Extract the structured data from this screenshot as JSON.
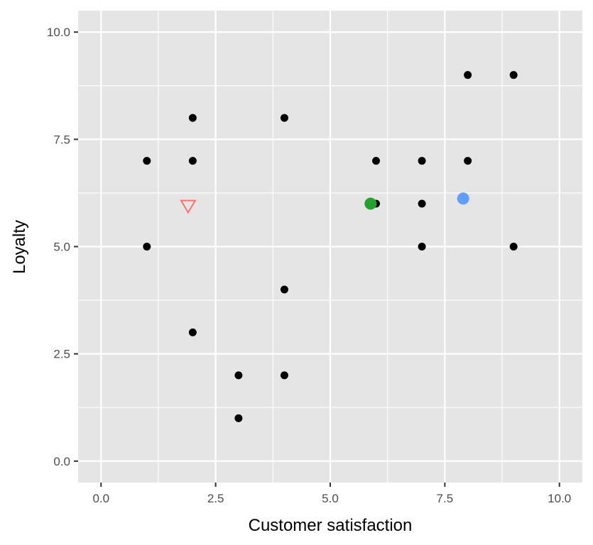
{
  "chart_data": {
    "type": "scatter",
    "title": "",
    "xlabel": "Customer satisfaction",
    "ylabel": "Loyalty",
    "xlim": [
      -0.5,
      10.5
    ],
    "ylim": [
      -0.5,
      10.5
    ],
    "x_ticks": [
      0.0,
      2.5,
      5.0,
      7.5,
      10.0
    ],
    "x_tick_labels": [
      "0.0",
      "2.5",
      "5.0",
      "7.5",
      "10.0"
    ],
    "y_ticks": [
      0.0,
      2.5,
      5.0,
      7.5,
      10.0
    ],
    "y_tick_labels": [
      "0.0",
      "2.5",
      "5.0",
      "7.5",
      "10.0"
    ],
    "grid": true,
    "legend": "none",
    "points": [
      {
        "x": 1,
        "y": 7
      },
      {
        "x": 1,
        "y": 5
      },
      {
        "x": 2,
        "y": 8
      },
      {
        "x": 2,
        "y": 7
      },
      {
        "x": 2,
        "y": 3
      },
      {
        "x": 3,
        "y": 2
      },
      {
        "x": 3,
        "y": 1
      },
      {
        "x": 4,
        "y": 8
      },
      {
        "x": 4,
        "y": 4
      },
      {
        "x": 4,
        "y": 2
      },
      {
        "x": 6,
        "y": 7
      },
      {
        "x": 6,
        "y": 6
      },
      {
        "x": 7,
        "y": 7
      },
      {
        "x": 7,
        "y": 6
      },
      {
        "x": 7,
        "y": 5
      },
      {
        "x": 8,
        "y": 9
      },
      {
        "x": 8,
        "y": 7
      },
      {
        "x": 9,
        "y": 9
      },
      {
        "x": 9,
        "y": 5
      }
    ],
    "highlighted_points": [
      {
        "x": 1.9,
        "y": 5.95,
        "shape": "triangle-down-open",
        "color": "#F8766D"
      },
      {
        "x": 5.88,
        "y": 6.0,
        "shape": "circle",
        "color": "#22A32E"
      },
      {
        "x": 7.9,
        "y": 6.12,
        "shape": "circle",
        "color": "#619CFF"
      }
    ]
  },
  "colors": {
    "panel_background": "#E5E5E5",
    "grid": "#FFFFFF",
    "point": "#000000"
  }
}
